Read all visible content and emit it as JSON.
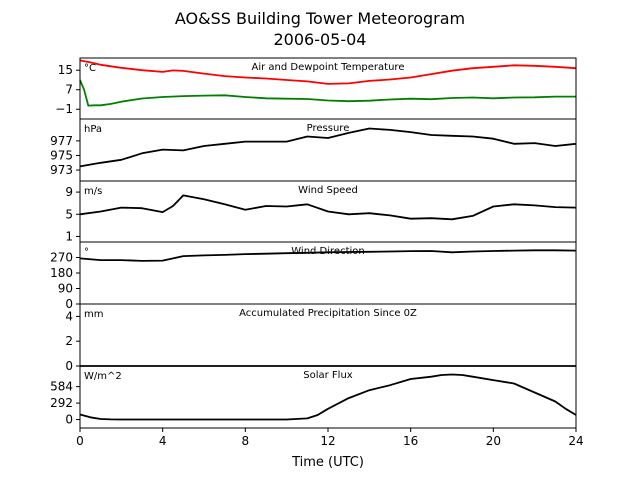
{
  "title": "AO&SS Building Tower Meteorogram",
  "subtitle": "2006-05-04",
  "x_axis": {
    "label": "Time (UTC)",
    "ticks": [
      0,
      4,
      8,
      12,
      16,
      20,
      24
    ],
    "tick_labels": [
      "0",
      "4",
      "8",
      "12",
      "16",
      "20",
      "24"
    ],
    "range": [
      0,
      24
    ]
  },
  "colors": {
    "temperature": "#ff0000",
    "dewpoint": "#008000",
    "default": "#000000"
  },
  "chart_data": [
    {
      "type": "line",
      "title": "Air and Dewpoint Temperature",
      "unit": "°C",
      "ylim": [
        -5,
        20
      ],
      "yticks": [
        -1,
        7,
        15
      ],
      "ytick_labels": [
        "−1",
        "7",
        "15"
      ],
      "series": [
        {
          "key": "temperature",
          "x": [
            0,
            0.5,
            1,
            2,
            3,
            4,
            4.5,
            5,
            6,
            7,
            8,
            9,
            10,
            11,
            12,
            13,
            14,
            15,
            16,
            17,
            18,
            19,
            20,
            21,
            22,
            23,
            24
          ],
          "values": [
            19,
            18.2,
            17.2,
            16,
            15,
            14.3,
            14.9,
            14.7,
            13.6,
            12.6,
            12,
            11.6,
            11,
            10.4,
            9.4,
            9.6,
            10.6,
            11.2,
            12,
            13.4,
            14.8,
            15.8,
            16.4,
            17,
            16.8,
            16.4,
            15.8
          ]
        },
        {
          "key": "dewpoint",
          "x": [
            0,
            0.2,
            0.4,
            0.7,
            1,
            1.5,
            2,
            3,
            4,
            5,
            6,
            7,
            8,
            9,
            10,
            11,
            12,
            13,
            14,
            15,
            16,
            17,
            18,
            19,
            20,
            21,
            22,
            23,
            24
          ],
          "values": [
            11,
            7,
            0.5,
            0.6,
            0.6,
            1.2,
            2.1,
            3.4,
            4,
            4.4,
            4.6,
            4.7,
            4,
            3.5,
            3.3,
            3.2,
            2.6,
            2.3,
            2.5,
            3,
            3.3,
            3.1,
            3.6,
            3.8,
            3.5,
            3.8,
            3.9,
            4.2,
            4.2
          ]
        }
      ]
    },
    {
      "type": "line",
      "title": "Pressure",
      "unit": "hPa",
      "ylim": [
        971.5,
        980
      ],
      "yticks": [
        973,
        975,
        977
      ],
      "ytick_labels": [
        "973",
        "975",
        "977"
      ],
      "series": [
        {
          "key": "default",
          "x": [
            0,
            1,
            2,
            3,
            4,
            5,
            6,
            7,
            8,
            9,
            10,
            11,
            12,
            13,
            14,
            15,
            16,
            17,
            18,
            19,
            20,
            21,
            22,
            23,
            24
          ],
          "values": [
            973.5,
            974,
            974.4,
            975.3,
            975.8,
            975.7,
            976.3,
            976.6,
            976.9,
            976.9,
            976.9,
            977.6,
            977.4,
            978.1,
            978.7,
            978.5,
            978.2,
            977.8,
            977.7,
            977.6,
            977.3,
            976.6,
            976.7,
            976.3,
            976.6
          ]
        }
      ]
    },
    {
      "type": "line",
      "title": "Wind Speed",
      "unit": "m/s",
      "ylim": [
        0,
        11
      ],
      "yticks": [
        1,
        5,
        9
      ],
      "ytick_labels": [
        "1",
        "5",
        "9"
      ],
      "series": [
        {
          "key": "default",
          "x": [
            0,
            1,
            2,
            3,
            4,
            4.5,
            5,
            6,
            7,
            8,
            9,
            10,
            11,
            12,
            13,
            14,
            15,
            16,
            17,
            18,
            19,
            20,
            21,
            22,
            23,
            24
          ],
          "values": [
            5,
            5.5,
            6.2,
            6.1,
            5.4,
            6.5,
            8.4,
            7.7,
            6.8,
            5.8,
            6.5,
            6.4,
            6.8,
            5.5,
            5,
            5.2,
            4.8,
            4.2,
            4.3,
            4.1,
            4.7,
            6.4,
            6.8,
            6.6,
            6.3,
            6.2
          ]
        }
      ]
    },
    {
      "type": "line",
      "title": "Wind Direction",
      "unit": "°",
      "ylim": [
        0,
        360
      ],
      "yticks": [
        0,
        90,
        180,
        270
      ],
      "ytick_labels": [
        "0",
        "90",
        "180",
        "270"
      ],
      "series": [
        {
          "key": "default",
          "x": [
            0,
            1,
            2,
            3,
            4,
            4.5,
            5,
            6,
            7,
            8,
            9,
            10,
            11,
            12,
            13,
            14,
            15,
            16,
            17,
            18,
            19,
            20,
            21,
            22,
            23,
            24
          ],
          "values": [
            265,
            255,
            255,
            250,
            252,
            265,
            278,
            282,
            285,
            290,
            292,
            295,
            297,
            300,
            302,
            303,
            305,
            307,
            308,
            300,
            305,
            308,
            310,
            312,
            312,
            310
          ]
        }
      ]
    },
    {
      "type": "line",
      "title": "Accumulated Precipitation Since 0Z",
      "unit": "mm",
      "ylim": [
        0,
        5
      ],
      "yticks": [
        0,
        2,
        4
      ],
      "ytick_labels": [
        "0",
        "2",
        "4"
      ],
      "series": [
        {
          "key": "default",
          "x": [
            0,
            24
          ],
          "values": [
            0,
            0
          ]
        }
      ]
    },
    {
      "type": "line",
      "title": "Solar Flux",
      "unit": "W/m^2",
      "ylim": [
        -150,
        950
      ],
      "yticks": [
        0,
        292,
        584
      ],
      "ytick_labels": [
        "0",
        "292",
        "584"
      ],
      "series": [
        {
          "key": "default",
          "x": [
            0,
            0.5,
            1,
            1.5,
            2,
            4,
            6,
            8,
            10,
            11,
            11.5,
            12,
            13,
            14,
            15,
            16,
            17,
            17.5,
            18,
            18.5,
            19,
            20,
            21,
            22,
            23,
            23.5,
            24
          ],
          "values": [
            90,
            40,
            10,
            2,
            0,
            0,
            0,
            0,
            0,
            20,
            80,
            190,
            380,
            520,
            610,
            720,
            760,
            790,
            800,
            790,
            760,
            700,
            640,
            480,
            320,
            190,
            80
          ]
        }
      ]
    }
  ]
}
